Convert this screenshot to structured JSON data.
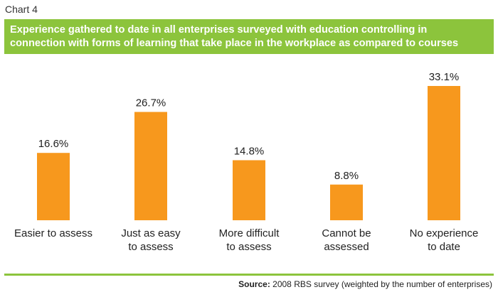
{
  "header": {
    "chart_number": "Chart 4",
    "title_lines": [
      "Experience gathered to date in all enterprises surveyed with education controlling in",
      "connection with forms of learning that take place in the workplace as compared to courses"
    ]
  },
  "colors": {
    "bar": "#f7981d",
    "accent": "#8cc43c",
    "title_text": "#ffffff"
  },
  "chart_data": {
    "type": "bar",
    "title": "Experience gathered to date in all enterprises surveyed with education controlling in connection with forms of learning that take place in the workplace as compared to courses",
    "categories": [
      [
        "Easier to assess"
      ],
      [
        "Just as easy",
        "to assess"
      ],
      [
        "More difficult",
        "to assess"
      ],
      [
        "Cannot be",
        "assessed"
      ],
      [
        "No experience",
        "to date"
      ]
    ],
    "values": [
      16.6,
      26.7,
      14.8,
      8.8,
      33.1
    ],
    "data_labels": [
      "16.6%",
      "26.7%",
      "14.8%",
      "8.8%",
      "33.1%"
    ],
    "ylim": [
      0,
      33.1
    ],
    "grid": false,
    "legend": "none"
  },
  "footer": {
    "source_label": "Source:",
    "source_text": " 2008 RBS survey (weighted by the number of enterprises)"
  }
}
